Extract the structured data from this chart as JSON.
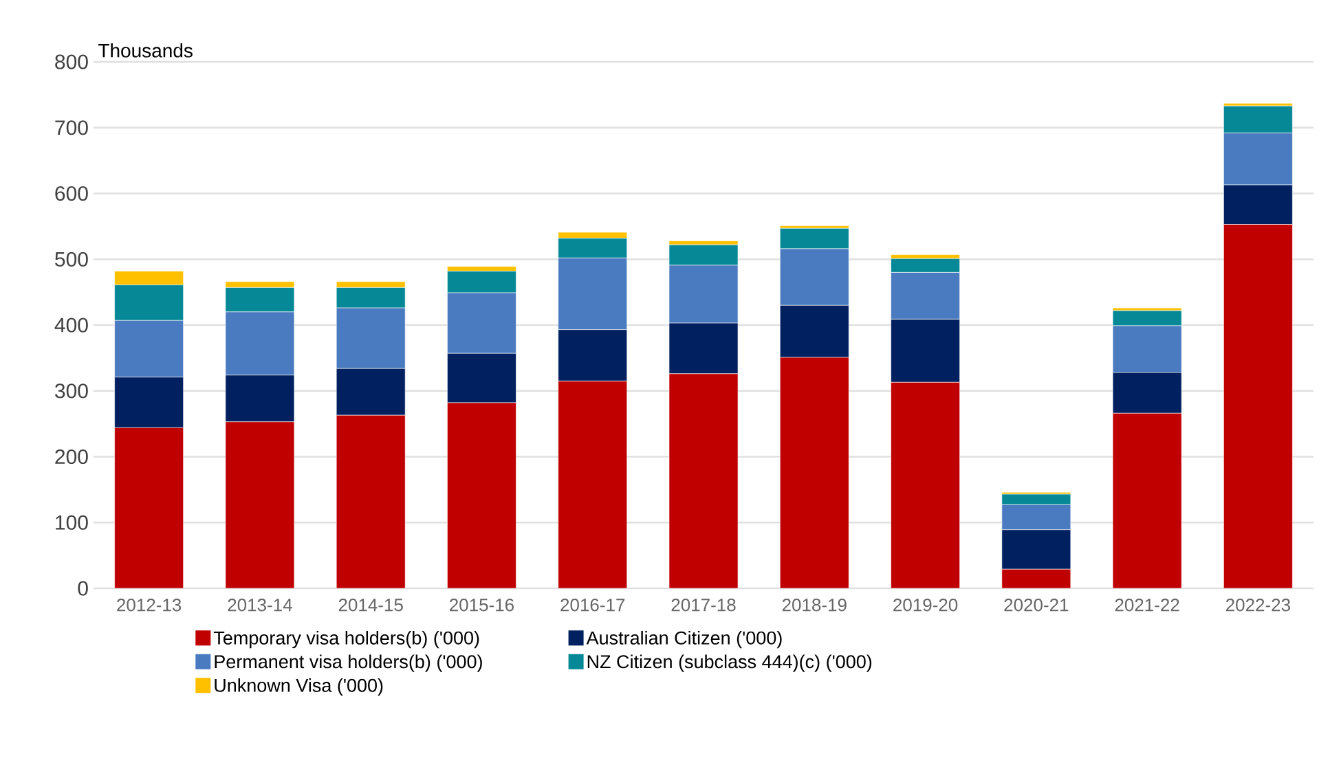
{
  "chart_data": {
    "type": "bar",
    "stacked": true,
    "ylabel": "Thousands",
    "categories": [
      "2012-13",
      "2013-14",
      "2014-15",
      "2015-16",
      "2016-17",
      "2017-18",
      "2018-19",
      "2019-20",
      "2020-21",
      "2021-22",
      "2022-23"
    ],
    "series": [
      {
        "name": "Temporary visa holders(b) ('000)",
        "color": "#c00000",
        "values": [
          244,
          253,
          263,
          282,
          315,
          326,
          351,
          313,
          29,
          266,
          553
        ]
      },
      {
        "name": "Australian Citizen ('000)",
        "color": "#002060",
        "values": [
          77,
          71,
          71,
          75,
          78,
          77,
          79,
          96,
          60,
          62,
          60
        ]
      },
      {
        "name": "Permanent visa holders(b) ('000)",
        "color": "#4a7bc0",
        "values": [
          86,
          96,
          92,
          92,
          109,
          88,
          86,
          71,
          38,
          71,
          79
        ]
      },
      {
        "name": "NZ Citizen (subclass 444)(c) ('000)",
        "color": "#068896",
        "values": [
          54,
          37,
          31,
          33,
          30,
          31,
          31,
          21,
          16,
          23,
          41
        ]
      },
      {
        "name": "Unknown Visa ('000)",
        "color": "#ffc000",
        "values": [
          21,
          9,
          9,
          7,
          9,
          6,
          4,
          6,
          3,
          4,
          4
        ]
      }
    ],
    "ylim": [
      0,
      800
    ],
    "yticks": [
      0,
      100,
      200,
      300,
      400,
      500,
      600,
      700,
      800
    ],
    "grid": "y",
    "legend": "bottom"
  }
}
